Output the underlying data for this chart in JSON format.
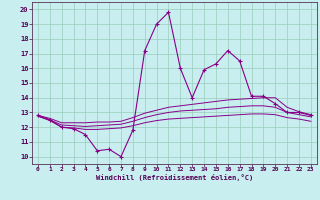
{
  "x": [
    0,
    1,
    2,
    3,
    4,
    5,
    6,
    7,
    8,
    9,
    10,
    11,
    12,
    13,
    14,
    15,
    16,
    17,
    18,
    19,
    20,
    21,
    22,
    23
  ],
  "y_main": [
    12.8,
    12.5,
    12.0,
    11.9,
    11.5,
    10.4,
    10.5,
    10.0,
    11.8,
    17.2,
    19.0,
    19.8,
    16.0,
    14.0,
    15.9,
    16.3,
    17.2,
    16.5,
    14.1,
    14.1,
    13.6,
    13.0,
    13.0,
    12.8
  ],
  "y_upper": [
    12.8,
    12.6,
    12.3,
    12.3,
    12.3,
    12.35,
    12.35,
    12.4,
    12.65,
    12.95,
    13.15,
    13.35,
    13.45,
    13.55,
    13.65,
    13.75,
    13.85,
    13.9,
    13.95,
    14.0,
    14.0,
    13.35,
    13.05,
    12.85
  ],
  "y_mid": [
    12.75,
    12.5,
    12.15,
    12.1,
    12.05,
    12.1,
    12.15,
    12.2,
    12.4,
    12.65,
    12.85,
    13.0,
    13.1,
    13.15,
    13.2,
    13.25,
    13.35,
    13.4,
    13.45,
    13.45,
    13.35,
    13.0,
    12.85,
    12.7
  ],
  "y_lower": [
    12.75,
    12.45,
    12.0,
    11.95,
    11.85,
    11.85,
    11.9,
    11.95,
    12.1,
    12.3,
    12.45,
    12.55,
    12.6,
    12.65,
    12.7,
    12.75,
    12.8,
    12.85,
    12.9,
    12.9,
    12.85,
    12.65,
    12.55,
    12.4
  ],
  "color_main": "#880088",
  "bg_color": "#c8eef0",
  "grid_color": "#99ccbb",
  "xlabel": "Windchill (Refroidissement éolien,°C)",
  "xlim": [
    -0.5,
    23.5
  ],
  "ylim": [
    9.5,
    20.5
  ],
  "yticks": [
    10,
    11,
    12,
    13,
    14,
    15,
    16,
    17,
    18,
    19,
    20
  ],
  "xticks": [
    0,
    1,
    2,
    3,
    4,
    5,
    6,
    7,
    8,
    9,
    10,
    11,
    12,
    13,
    14,
    15,
    16,
    17,
    18,
    19,
    20,
    21,
    22,
    23
  ]
}
